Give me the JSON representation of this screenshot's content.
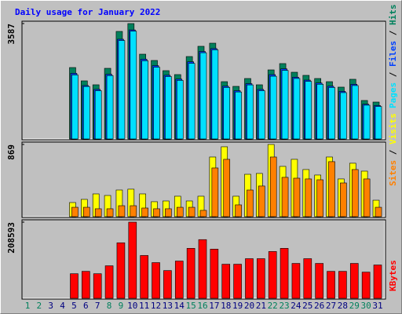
{
  "chart_data": [
    {
      "type": "bar",
      "title": "Daily usage for January 2022",
      "ylim": [
        0,
        3587
      ],
      "yticks": [
        3587
      ],
      "legend_separator": " / ",
      "series": [
        {
          "name": "Pages",
          "color": "#00e0ff",
          "values": [
            null,
            null,
            null,
            null,
            1990,
            1630,
            1500,
            1970,
            3060,
            3350,
            2430,
            2230,
            1940,
            1820,
            2350,
            2680,
            2770,
            1600,
            1460,
            1680,
            1500,
            1950,
            2130,
            1880,
            1790,
            1700,
            1600,
            1440,
            1660,
            1050,
            1010
          ]
        },
        {
          "name": "Files",
          "color": "#0040ff",
          "values": [
            null,
            null,
            null,
            null,
            2040,
            1660,
            1540,
            2010,
            3100,
            3390,
            2480,
            2280,
            1980,
            1860,
            2400,
            2720,
            2810,
            1640,
            1500,
            1720,
            1540,
            2000,
            2180,
            1920,
            1830,
            1740,
            1640,
            1480,
            1700,
            1080,
            1040
          ]
        },
        {
          "name": "Hits",
          "color": "#00805c",
          "values": [
            null,
            null,
            null,
            null,
            2220,
            1806,
            1684,
            2196,
            3343,
            3587,
            2635,
            2440,
            2123,
            2001,
            2562,
            2880,
            2977,
            1781,
            1635,
            1879,
            1684,
            2147,
            2343,
            2074,
            1977,
            1879,
            1781,
            1611,
            1855,
            1196,
            1147
          ]
        }
      ]
    },
    {
      "type": "bar",
      "ylim": [
        0,
        869
      ],
      "yticks": [
        869
      ],
      "legend_separator": " / ",
      "series": [
        {
          "name": "Sites",
          "color": "#ff8000",
          "values": [
            null,
            null,
            null,
            null,
            113,
            113,
            95,
            95,
            132,
            132,
            104,
            95,
            95,
            113,
            113,
            76,
            586,
            690,
            142,
            321,
            369,
            718,
            473,
            463,
            454,
            444,
            662,
            406,
            567,
            454,
            113
          ]
        },
        {
          "name": "Visits",
          "color": "#ffff00",
          "values": [
            null,
            null,
            null,
            null,
            170,
            208,
            274,
            255,
            321,
            331,
            274,
            180,
            189,
            246,
            189,
            246,
            718,
            841,
            246,
            510,
            520,
            869,
            605,
            690,
            567,
            501,
            718,
            454,
            643,
            548,
            198
          ]
        }
      ]
    },
    {
      "type": "bar",
      "ylim": [
        0,
        208593
      ],
      "yticks": [
        208593
      ],
      "categories": [
        "1",
        "2",
        "3",
        "4",
        "5",
        "6",
        "7",
        "8",
        "9",
        "10",
        "11",
        "12",
        "13",
        "14",
        "15",
        "16",
        "17",
        "18",
        "19",
        "20",
        "21",
        "22",
        "23",
        "24",
        "25",
        "26",
        "27",
        "28",
        "29",
        "30",
        "31"
      ],
      "category_colors": [
        "#00805c",
        "#00805c",
        "#000080",
        "#000080",
        "#000080",
        "#000080",
        "#000080",
        "#00805c",
        "#00805c",
        "#000080",
        "#000080",
        "#000080",
        "#000080",
        "#000080",
        "#00805c",
        "#00805c",
        "#000080",
        "#000080",
        "#000080",
        "#000080",
        "#000080",
        "#00805c",
        "#00805c",
        "#000080",
        "#000080",
        "#000080",
        "#000080",
        "#000080",
        "#00805c",
        "#00805c",
        "#000080"
      ],
      "series": [
        {
          "name": "KBytes",
          "color": "#ff0000",
          "values": [
            null,
            null,
            null,
            null,
            67360,
            73884,
            67360,
            89100,
            152100,
            208593,
            117300,
            97800,
            76000,
            102100,
            136900,
            160800,
            134700,
            93400,
            93400,
            108600,
            108600,
            128200,
            136900,
            95600,
            108600,
            95600,
            73884,
            73884,
            95600,
            71700,
            91300
          ]
        }
      ]
    }
  ]
}
